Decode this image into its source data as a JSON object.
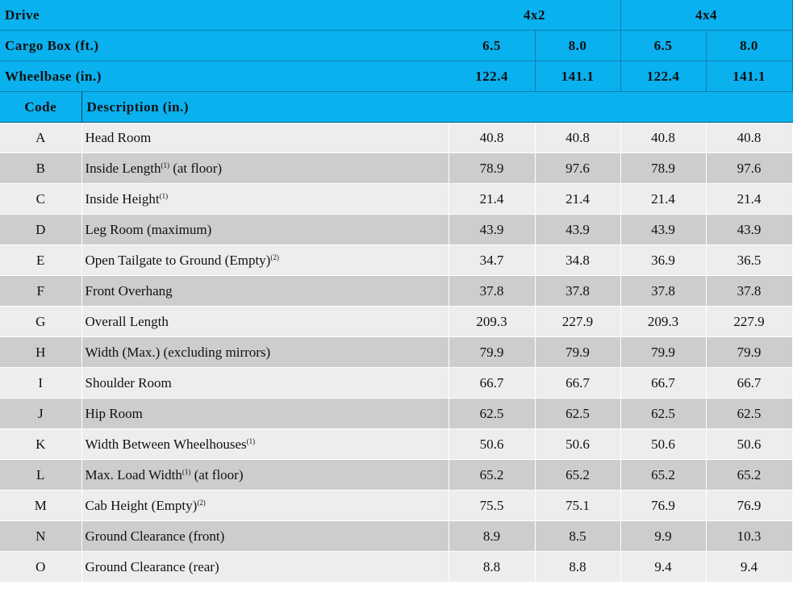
{
  "header": {
    "drive_label": "Drive",
    "drive_4x2": "4x2",
    "drive_4x4": "4x4",
    "cargo_label": "Cargo Box (ft.)",
    "cargo_values": [
      "6.5",
      "8.0",
      "6.5",
      "8.0"
    ],
    "wheelbase_label": "Wheelbase (in.)",
    "wheelbase_values": [
      "122.4",
      "141.1",
      "122.4",
      "141.1"
    ],
    "code_label": "Code",
    "description_label": "Description (in.)"
  },
  "rows": [
    {
      "code": "A",
      "desc": "Head Room",
      "note": "",
      "suffix": "",
      "values": [
        "40.8",
        "40.8",
        "40.8",
        "40.8"
      ]
    },
    {
      "code": "B",
      "desc": "Inside Length",
      "note": "(1)",
      "suffix": " (at floor)",
      "values": [
        "78.9",
        "97.6",
        "78.9",
        "97.6"
      ]
    },
    {
      "code": "C",
      "desc": "Inside Height",
      "note": "(1)",
      "suffix": "",
      "values": [
        "21.4",
        "21.4",
        "21.4",
        "21.4"
      ]
    },
    {
      "code": "D",
      "desc": "Leg Room (maximum)",
      "note": "",
      "suffix": "",
      "values": [
        "43.9",
        "43.9",
        "43.9",
        "43.9"
      ]
    },
    {
      "code": "E",
      "desc": "Open Tailgate to Ground (Empty)",
      "note": "(2)",
      "suffix": "",
      "values": [
        "34.7",
        "34.8",
        "36.9",
        "36.5"
      ]
    },
    {
      "code": "F",
      "desc": "Front Overhang",
      "note": "",
      "suffix": "",
      "values": [
        "37.8",
        "37.8",
        "37.8",
        "37.8"
      ]
    },
    {
      "code": "G",
      "desc": "Overall Length",
      "note": "",
      "suffix": "",
      "values": [
        "209.3",
        "227.9",
        "209.3",
        "227.9"
      ]
    },
    {
      "code": "H",
      "desc": "Width (Max.) (excluding mirrors)",
      "note": "",
      "suffix": "",
      "values": [
        "79.9",
        "79.9",
        "79.9",
        "79.9"
      ]
    },
    {
      "code": "I",
      "desc": "Shoulder Room",
      "note": "",
      "suffix": "",
      "values": [
        "66.7",
        "66.7",
        "66.7",
        "66.7"
      ]
    },
    {
      "code": "J",
      "desc": "Hip Room",
      "note": "",
      "suffix": "",
      "values": [
        "62.5",
        "62.5",
        "62.5",
        "62.5"
      ]
    },
    {
      "code": "K",
      "desc": "Width Between Wheelhouses",
      "note": "(1)",
      "suffix": "",
      "values": [
        "50.6",
        "50.6",
        "50.6",
        "50.6"
      ]
    },
    {
      "code": "L",
      "desc": "Max. Load Width",
      "note": "(1)",
      "suffix": " (at floor)",
      "values": [
        "65.2",
        "65.2",
        "65.2",
        "65.2"
      ]
    },
    {
      "code": "M",
      "desc": "Cab Height (Empty)",
      "note": "(2)",
      "suffix": "",
      "values": [
        "75.5",
        "75.1",
        "76.9",
        "76.9"
      ]
    },
    {
      "code": "N",
      "desc": "Ground Clearance (front)",
      "note": "",
      "suffix": "",
      "values": [
        "8.9",
        "8.5",
        "9.9",
        "10.3"
      ]
    },
    {
      "code": "O",
      "desc": "Ground Clearance (rear)",
      "note": "",
      "suffix": "",
      "values": [
        "8.8",
        "8.8",
        "9.4",
        "9.4"
      ]
    }
  ],
  "colors": {
    "header_bg": "#0ab1ef",
    "row_light": "#ededed",
    "row_dark": "#cdcdcd"
  }
}
